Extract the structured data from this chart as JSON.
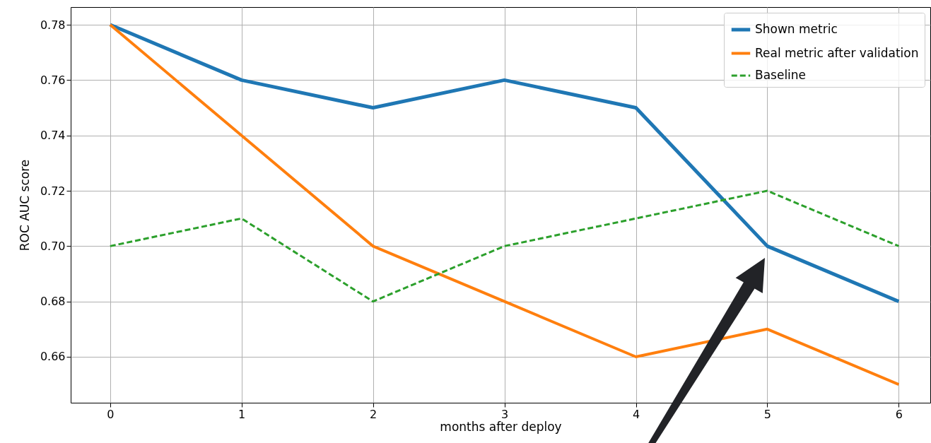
{
  "chart_data": {
    "type": "line",
    "xlabel": "months after deploy",
    "ylabel": "ROC AUC score",
    "x": [
      0,
      1,
      2,
      3,
      4,
      5,
      6
    ],
    "series": [
      {
        "name": "Shown metric",
        "color": "#1f77b4",
        "line_style": "solid",
        "values": [
          0.78,
          0.76,
          0.75,
          0.76,
          0.75,
          0.7,
          0.68
        ]
      },
      {
        "name": "Real metric after validation",
        "color": "#ff7f0e",
        "line_style": "solid",
        "values": [
          0.78,
          0.74,
          0.7,
          0.68,
          0.66,
          0.67,
          0.65
        ]
      },
      {
        "name": "Baseline",
        "color": "#2ca02c",
        "line_style": "dashed",
        "values": [
          0.7,
          0.71,
          0.68,
          0.7,
          0.71,
          0.72,
          0.7
        ]
      }
    ],
    "xlim": [
      -0.3,
      6.24
    ],
    "xticks": [
      0,
      1,
      2,
      3,
      4,
      5,
      6
    ],
    "ylim": [
      0.6434,
      0.7864
    ],
    "yticks": [
      0.66,
      0.68,
      {
        "value": 0.7,
        "label": "0.70"
      },
      0.72,
      0.74,
      0.76,
      0.78
    ],
    "grid": true,
    "legend": "top right",
    "marker": "none"
  }
}
